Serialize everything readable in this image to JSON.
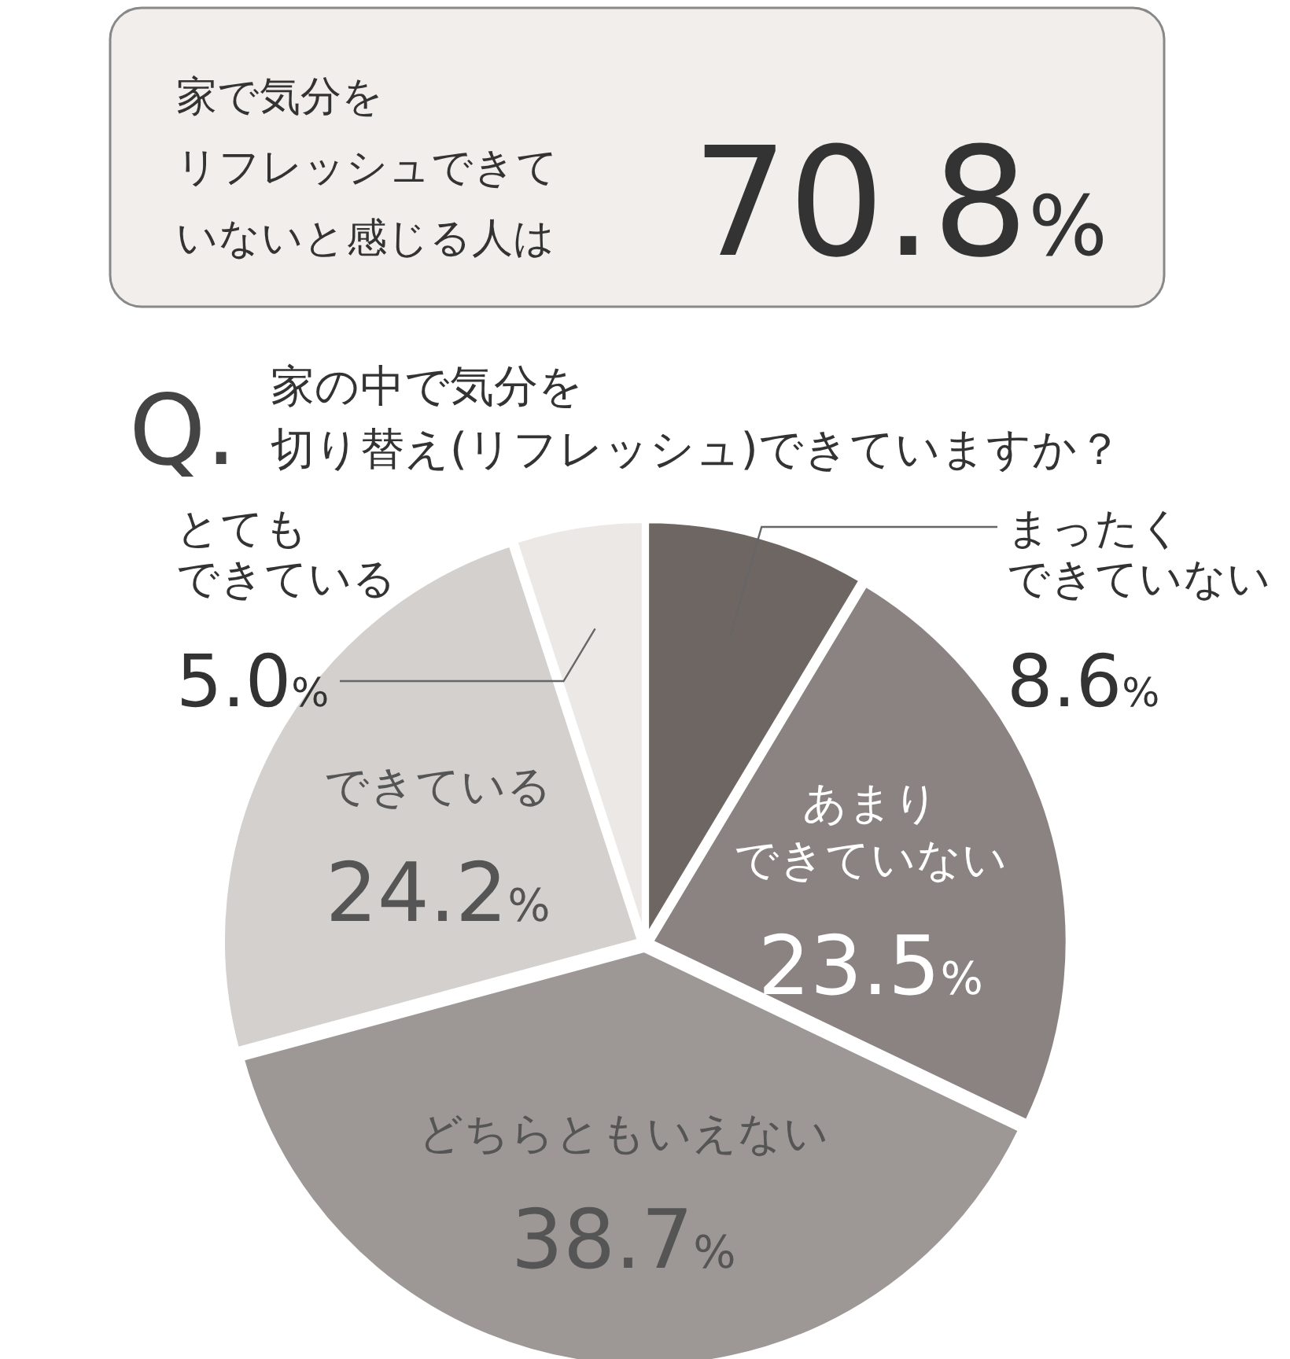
{
  "chart_data": {
    "type": "pie",
    "title": "Q. 家の中で気分を切り替え(リフレッシュ)できていますか？",
    "categories": [
      "まったくできていない",
      "あまりできていない",
      "どちらともいえない",
      "できている",
      "とてもできている"
    ],
    "values": [
      8.6,
      23.5,
      38.7,
      24.2,
      5.0
    ],
    "value_labels": [
      "8.6%",
      "23.5%",
      "38.7%",
      "24.2%",
      "5.0%"
    ],
    "colors": [
      "#6e6663",
      "#8a8381",
      "#9d9896",
      "#d3d0ce",
      "#ebe8e6"
    ],
    "annotations": [
      "家で気分をリフレッシュできていないと感じる人は",
      "70.8%"
    ]
  }
}
